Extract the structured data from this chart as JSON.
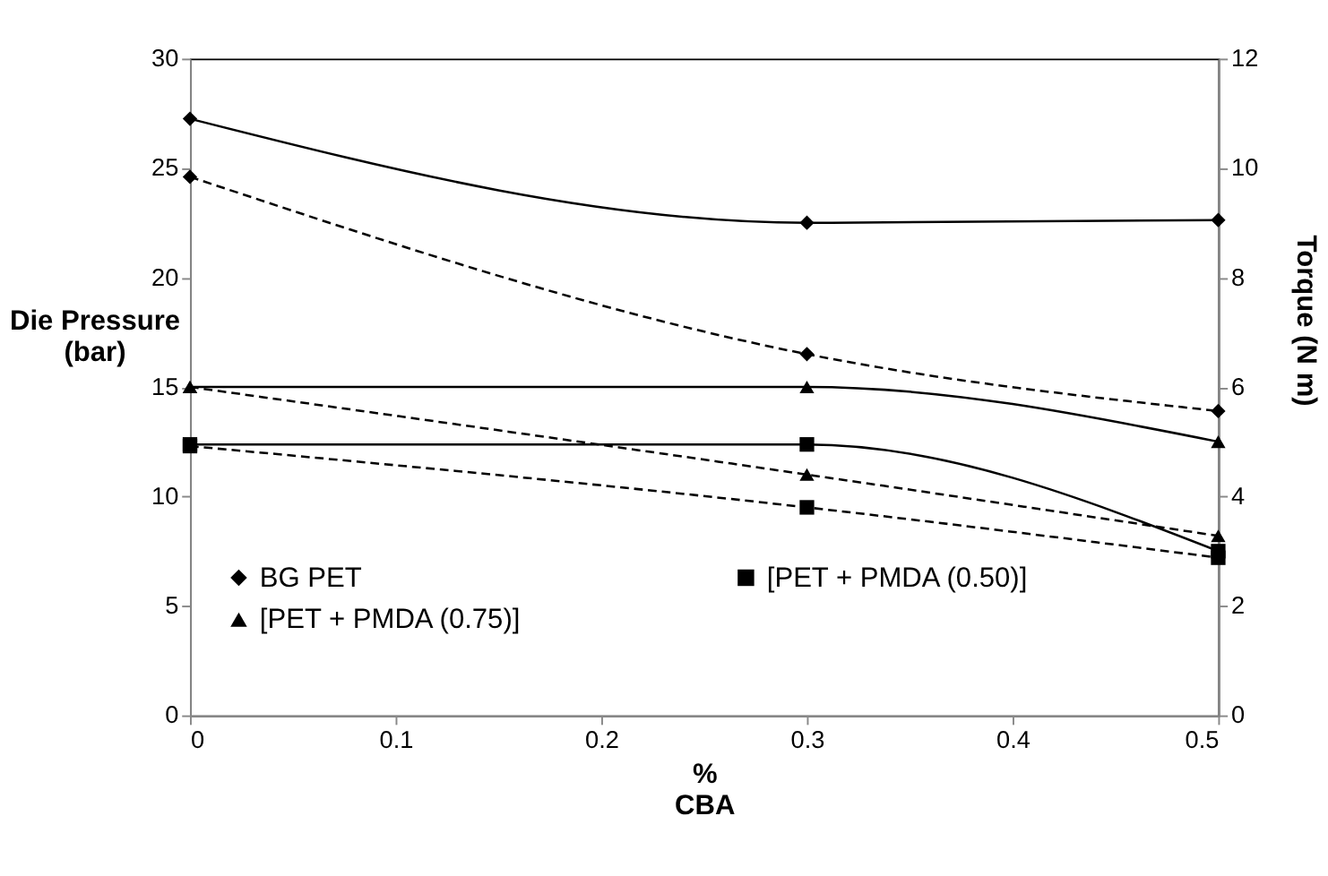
{
  "chart_data": {
    "type": "line",
    "xlabel": "%\nCBA",
    "ylabel": "Die Pressure\n(bar)",
    "y2label": "Torque (N m)",
    "x": [
      0,
      0.3,
      0.5
    ],
    "xlim": [
      0,
      0.5
    ],
    "xticks": [
      0,
      0.1,
      0.2,
      0.3,
      0.4,
      0.5
    ],
    "ylim": [
      0,
      30
    ],
    "yticks": [
      0,
      5,
      10,
      15,
      20,
      25,
      30
    ],
    "y2lim": [
      0,
      12
    ],
    "y2ticks": [
      0,
      2,
      4,
      6,
      8,
      10,
      12
    ],
    "grid": false,
    "legend": "bottom left",
    "series": [
      {
        "name": "BG PET",
        "color": "#000000",
        "marker": "diamond",
        "line_style": "dashed",
        "values": [
          24.6,
          16.5,
          13.9
        ]
      },
      {
        "name": "[PET + PMDA (0.50)]",
        "color": "#000000",
        "marker": "square",
        "line_style": "dashed",
        "values": [
          12.3,
          9.5,
          7.2
        ]
      },
      {
        "name": "[PET + PMDA (0.75)]",
        "color": "#000000",
        "marker": "triangle",
        "line_style": "dashed",
        "values": [
          15.0,
          11.0,
          8.2
        ]
      },
      {
        "color": "#000000",
        "marker": "diamond",
        "line_style": "solid",
        "axis": "y2",
        "values": [
          10.9,
          9.0,
          9.05
        ]
      },
      {
        "color": "#000000",
        "marker": "square",
        "line_style": "solid",
        "axis": "y2",
        "values": [
          4.95,
          4.95,
          3.0
        ]
      },
      {
        "color": "#000000",
        "marker": "triangle",
        "line_style": "solid",
        "axis": "y2",
        "values": [
          6.0,
          6.0,
          5.0
        ]
      }
    ]
  }
}
